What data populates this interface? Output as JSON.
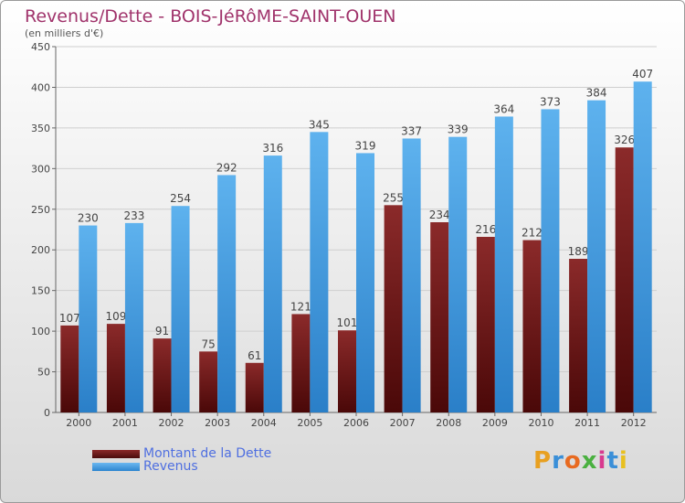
{
  "title": "Revenus/Dette - BOIS-JéRôME-SAINT-OUEN",
  "subtitle": "(en milliers d'€)",
  "logo_text": "Proxiti",
  "colors": {
    "dette": "#6e1515",
    "revenus": "#4aa3e6",
    "title": "#a0336b",
    "legend_text": "#4f6fe0"
  },
  "chart_data": {
    "type": "bar",
    "categories": [
      "2000",
      "2001",
      "2002",
      "2003",
      "2004",
      "2005",
      "2006",
      "2007",
      "2008",
      "2009",
      "2010",
      "2011",
      "2012"
    ],
    "series": [
      {
        "name": "Montant de la Dette",
        "values": [
          107,
          109,
          91,
          75,
          61,
          121,
          101,
          255,
          234,
          216,
          212,
          189,
          326
        ]
      },
      {
        "name": "Revenus",
        "values": [
          230,
          233,
          254,
          292,
          316,
          345,
          319,
          337,
          339,
          364,
          373,
          384,
          407
        ]
      }
    ],
    "ylim": [
      0,
      450
    ],
    "yticks": [
      0,
      50,
      100,
      150,
      200,
      250,
      300,
      350,
      400,
      450
    ],
    "grid": true,
    "legend_position": "bottom-left"
  }
}
